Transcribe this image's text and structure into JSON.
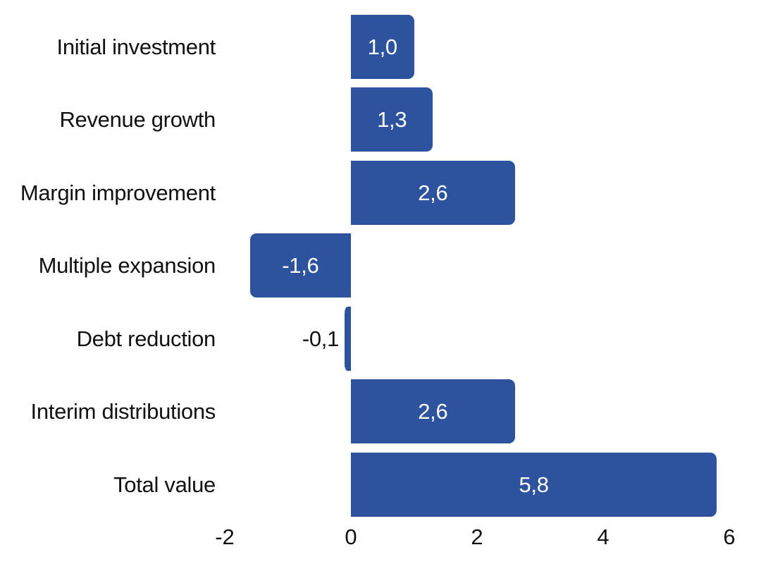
{
  "chart_data": {
    "type": "bar",
    "orientation": "horizontal",
    "title": "",
    "xlabel": "",
    "ylabel": "",
    "grid": false,
    "legend": false,
    "categories": [
      "Initial investment",
      "Revenue growth",
      "Margin improvement",
      "Multiple expansion",
      "Debt reduction",
      "Interim distributions",
      "Total value"
    ],
    "values": [
      1.0,
      1.3,
      2.6,
      -1.6,
      -0.1,
      2.6,
      5.8
    ],
    "value_labels": [
      "1,0",
      "1,3",
      "2,6",
      "-1,6",
      "-0,1",
      "2,6",
      "5,8"
    ],
    "decimal_separator": ",",
    "x_ticks": [
      -2,
      0,
      2,
      4,
      6
    ],
    "x_tick_labels": [
      "-2",
      "0",
      "2",
      "4",
      "6"
    ],
    "xlim": [
      -2.3,
      6.5
    ],
    "colors": {
      "bar": "#2e539e",
      "value_label_inside": "#ffffff",
      "value_label_outside": "#111111",
      "axis_text": "#111111",
      "background": "#ffffff"
    }
  }
}
